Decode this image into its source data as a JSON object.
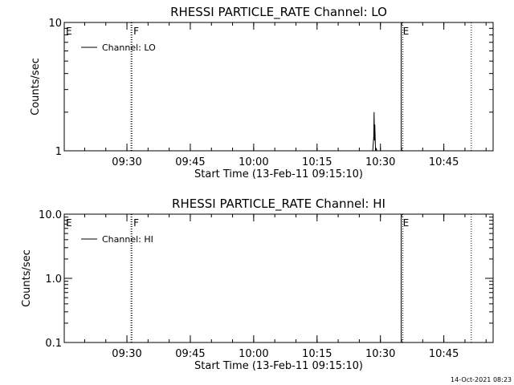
{
  "chart_data": [
    {
      "type": "line",
      "title": "RHESSI PARTICLE_RATE Channel: LO",
      "xlabel": "Start Time (13-Feb-11 09:15:10)",
      "ylabel": "Counts/sec",
      "yscale": "log",
      "ylim": [
        1,
        10
      ],
      "xlim": [
        "09:15:10",
        "10:56:40"
      ],
      "x_ticks": [
        "09:30",
        "09:45",
        "10:00",
        "10:15",
        "10:30",
        "10:45"
      ],
      "y_ticks": [
        "1",
        "10"
      ],
      "legend": {
        "label": "Channel: LO",
        "placement": "top-left"
      },
      "markers": [
        {
          "label": "E",
          "time": "09:15:10",
          "style": "none"
        },
        {
          "label": "F",
          "time": "09:31:10",
          "style": "dotted"
        },
        {
          "label": "E",
          "time": "10:34:55",
          "style": "solid+dotted"
        },
        {
          "label": "",
          "time": "10:51:30",
          "style": "dotted"
        }
      ],
      "series": [
        {
          "values_time": [
            "10:28:10",
            "10:28:25",
            "10:28:30",
            "10:28:35",
            "10:28:40",
            "10:28:50",
            "10:29:00",
            "10:29:10",
            "10:29:20"
          ],
          "values": [
            1,
            1.3,
            2.0,
            1.2,
            1.6,
            1,
            1.05,
            1,
            1
          ]
        }
      ]
    },
    {
      "type": "line",
      "title": "RHESSI PARTICLE_RATE Channel: HI",
      "xlabel": "Start Time (13-Feb-11 09:15:10)",
      "ylabel": "Counts/sec",
      "yscale": "log",
      "ylim": [
        0.1,
        10
      ],
      "xlim": [
        "09:15:10",
        "10:56:40"
      ],
      "x_ticks": [
        "09:30",
        "09:45",
        "10:00",
        "10:15",
        "10:30",
        "10:45"
      ],
      "y_ticks": [
        "0.1",
        "1.0",
        "10.0"
      ],
      "legend": {
        "label": "Channel: HI",
        "placement": "top-left"
      },
      "markers": [
        {
          "label": "E",
          "time": "09:15:10",
          "style": "none"
        },
        {
          "label": "F",
          "time": "09:31:10",
          "style": "dotted"
        },
        {
          "label": "E",
          "time": "10:34:55",
          "style": "solid+dotted"
        },
        {
          "label": "",
          "time": "10:51:30",
          "style": "dotted"
        }
      ],
      "series": [
        {
          "values_time": [],
          "values": []
        }
      ]
    }
  ],
  "footer": {
    "timestamp": "14-Oct-2021 08:23"
  }
}
